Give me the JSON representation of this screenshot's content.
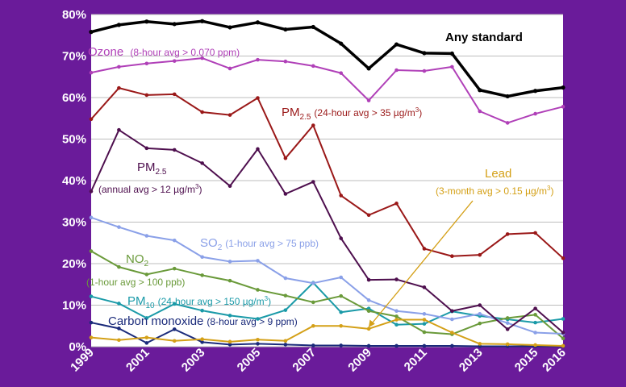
{
  "chart_data": {
    "type": "line",
    "title": "",
    "xlabel": "",
    "ylabel": "",
    "x": [
      1999,
      2000,
      2001,
      2002,
      2003,
      2004,
      2005,
      2006,
      2007,
      2008,
      2009,
      2010,
      2011,
      2012,
      2013,
      2014,
      2015,
      2016
    ],
    "x_tick_labels": [
      "1999",
      "2001",
      "2003",
      "2005",
      "2007",
      "2009",
      "2011",
      "2013",
      "2015",
      "2016"
    ],
    "ylim": [
      0,
      80
    ],
    "y_tick_labels": [
      "0%",
      "10%",
      "20%",
      "30%",
      "40%",
      "50%",
      "60%",
      "70%",
      "80%"
    ],
    "grid": true,
    "background": "#ffffff",
    "page_background": "#6a1b9a",
    "series": [
      {
        "name": "Any standard",
        "color": "#000000",
        "values": [
          75.8,
          77.5,
          78.3,
          77.7,
          78.4,
          76.9,
          78.1,
          76.4,
          77.0,
          73.0,
          67.0,
          72.8,
          70.7,
          70.6,
          61.8,
          60.3,
          61.6,
          62.4
        ]
      },
      {
        "name": "Ozone",
        "color": "#b040b8",
        "values": [
          66.0,
          67.4,
          68.2,
          68.8,
          69.5,
          67.0,
          69.1,
          68.7,
          67.6,
          65.9,
          59.3,
          66.6,
          66.4,
          67.4,
          56.7,
          53.9,
          56.1,
          57.8
        ]
      },
      {
        "name": "PM2.5 (24-hour)",
        "color": "#9a1818",
        "values": [
          54.8,
          62.3,
          60.6,
          60.8,
          56.5,
          55.8,
          59.9,
          45.4,
          53.3,
          36.4,
          31.7,
          34.5,
          23.6,
          21.8,
          22.1,
          27.1,
          27.4,
          21.3
        ]
      },
      {
        "name": "PM2.5 (annual)",
        "color": "#4e0f4e",
        "values": [
          37.4,
          52.2,
          47.8,
          47.4,
          44.2,
          38.7,
          47.6,
          36.8,
          39.7,
          26.1,
          16.1,
          16.2,
          14.3,
          8.6,
          10.0,
          4.2,
          9.2,
          3.4
        ]
      },
      {
        "name": "Lead",
        "color": "#d4a017",
        "values": [
          2.2,
          1.6,
          2.2,
          1.4,
          1.8,
          1.2,
          1.7,
          1.4,
          5.0,
          5.0,
          4.3,
          6.5,
          6.5,
          3.4,
          0.7,
          0.6,
          0.4,
          0.2
        ]
      },
      {
        "name": "SO2",
        "color": "#8aa0e8",
        "values": [
          31.1,
          28.8,
          26.7,
          25.6,
          21.6,
          20.5,
          20.7,
          16.5,
          15.3,
          16.7,
          11.2,
          8.6,
          7.9,
          6.6,
          7.9,
          5.7,
          3.4,
          3.1
        ]
      },
      {
        "name": "NO2",
        "color": "#6a9a3a",
        "values": [
          23.0,
          19.2,
          17.4,
          18.8,
          17.2,
          15.9,
          13.7,
          12.3,
          10.7,
          12.2,
          8.6,
          7.3,
          3.5,
          3.0,
          5.6,
          6.9,
          7.7,
          2.0
        ]
      },
      {
        "name": "PM10",
        "color": "#1a9aa8",
        "values": [
          12.1,
          10.4,
          6.9,
          10.3,
          8.7,
          7.5,
          6.7,
          8.8,
          15.4,
          8.3,
          9.2,
          5.3,
          5.5,
          8.5,
          7.4,
          6.6,
          5.8,
          6.7
        ]
      },
      {
        "name": "Carbon monoxide",
        "color": "#1a2a7a",
        "values": [
          5.8,
          4.4,
          0.9,
          4.2,
          1.1,
          0.5,
          0.7,
          0.5,
          0.3,
          0.3,
          0.2,
          0.2,
          0.2,
          0.2,
          0.1,
          0.1,
          0.1,
          0.1
        ]
      }
    ],
    "annotations": {
      "any_standard": "Any standard",
      "ozone_name": "Ozone",
      "ozone_desc": "(8-hour avg > 0.070 ppm)",
      "pm25_24_name": "PM",
      "pm25_24_sub": "2.5",
      "pm25_24_desc": "(24-hour avg > 35 µg/m",
      "pm25_24_sup": "3",
      "pm25_24_close": ")",
      "pm25_annual_name": "PM",
      "pm25_annual_sub": "2.5",
      "pm25_annual_desc": "(annual avg > 12 µg/m",
      "pm25_annual_sup": "3",
      "pm25_annual_close": ")",
      "lead_name": "Lead",
      "lead_desc": "(3-month avg > 0.15 µg/m",
      "lead_sup": "3",
      "lead_close": ")",
      "so2_name": "SO",
      "so2_sub": "2",
      "so2_desc": "(1-hour avg > 75 ppb)",
      "no2_name": "NO",
      "no2_sub": "2",
      "no2_desc": "(1-hour avg > 100 ppb)",
      "pm10_name": "PM",
      "pm10_sub": "10",
      "pm10_desc": "(24-hour avg > 150 µg/m",
      "pm10_sup": "3",
      "pm10_close": ")",
      "co_name": "Carbon monoxide",
      "co_desc": "(8-hour avg > 9 ppm)"
    }
  }
}
